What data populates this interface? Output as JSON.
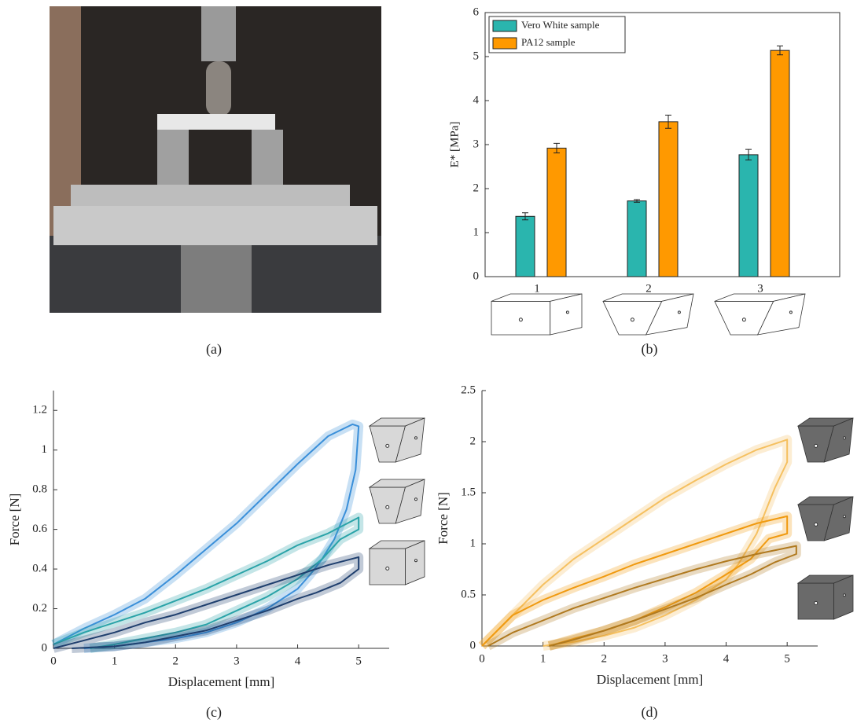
{
  "photo": {
    "caption": "(a)"
  },
  "chart_data": [
    {
      "type": "bar",
      "caption": "(b)",
      "ylabel": "E* [MPa]",
      "categories": [
        "1",
        "2",
        "3"
      ],
      "series": [
        {
          "name": "Vero White sample",
          "color": "#2ab5ae",
          "values": [
            1.37,
            1.72,
            2.77
          ],
          "error": [
            0.08,
            0.03,
            0.12
          ]
        },
        {
          "name": "PA12 sample",
          "color": "#ff9900",
          "values": [
            2.92,
            3.52,
            5.14
          ],
          "error": [
            0.11,
            0.15,
            0.1
          ]
        }
      ],
      "ylim": [
        0,
        6
      ],
      "yticks": [
        0,
        1,
        2,
        3,
        4,
        5,
        6
      ],
      "legend": "upper-left"
    },
    {
      "type": "line",
      "caption": "(c)",
      "xlabel": "Displacement [mm]",
      "ylabel": "Force [N]",
      "xlim": [
        0,
        5.5
      ],
      "xticks": [
        0,
        1,
        2,
        3,
        4,
        5
      ],
      "ylim": [
        0,
        1.3
      ],
      "yticks": [
        0,
        0.2,
        0.4,
        0.6,
        0.8,
        1,
        1.2
      ],
      "series": [
        {
          "color": "#3a8fd9",
          "x": [
            0,
            0.5,
            1,
            1.5,
            2,
            2.5,
            3,
            3.5,
            4,
            4.5,
            4.9,
            5.0,
            4.95,
            4.8,
            4.6,
            4.4,
            4.2,
            4,
            3.5,
            3,
            2.5,
            2,
            1.5,
            1,
            0.5
          ],
          "values": [
            0.02,
            0.1,
            0.17,
            0.25,
            0.37,
            0.5,
            0.63,
            0.78,
            0.93,
            1.07,
            1.13,
            1.12,
            0.9,
            0.7,
            0.55,
            0.45,
            0.37,
            0.3,
            0.2,
            0.13,
            0.08,
            0.05,
            0.03,
            0.01,
            0
          ]
        },
        {
          "color": "#2aa3a8",
          "x": [
            0,
            0.5,
            1,
            1.5,
            2,
            2.5,
            3,
            3.5,
            4,
            4.5,
            5,
            5,
            4.7,
            4.4,
            4,
            3.5,
            3,
            2.5,
            2,
            1.5,
            1,
            0.6
          ],
          "values": [
            0.02,
            0.08,
            0.13,
            0.18,
            0.24,
            0.3,
            0.37,
            0.44,
            0.52,
            0.58,
            0.66,
            0.6,
            0.55,
            0.45,
            0.35,
            0.26,
            0.19,
            0.12,
            0.08,
            0.05,
            0.02,
            0
          ]
        },
        {
          "color": "#1f3f6e",
          "x": [
            0,
            0.5,
            1,
            1.5,
            2,
            2.5,
            3,
            3.5,
            4,
            4.5,
            5,
            5,
            4.7,
            4.3,
            4,
            3.5,
            3,
            2.5,
            2,
            1.5,
            1,
            0.3
          ],
          "values": [
            0,
            0.04,
            0.08,
            0.13,
            0.17,
            0.22,
            0.27,
            0.32,
            0.37,
            0.42,
            0.46,
            0.4,
            0.33,
            0.28,
            0.25,
            0.19,
            0.14,
            0.09,
            0.06,
            0.03,
            0.01,
            0
          ]
        }
      ]
    },
    {
      "type": "line",
      "caption": "(d)",
      "xlabel": "Displacement [mm]",
      "ylabel": "Force [N]",
      "xlim": [
        0,
        5.5
      ],
      "xticks": [
        0,
        1,
        2,
        3,
        4,
        5
      ],
      "ylim": [
        0,
        2.5
      ],
      "yticks": [
        0,
        0.5,
        1,
        1.5,
        2,
        2.5
      ],
      "series": [
        {
          "color": "#f5c060",
          "x": [
            0,
            0.5,
            1,
            1.5,
            2,
            2.5,
            3,
            3.5,
            4,
            4.5,
            5,
            5,
            4.8,
            4.5,
            4.2,
            4,
            3.5,
            3,
            2.5,
            2,
            1.5,
            1
          ],
          "values": [
            0,
            0.3,
            0.6,
            0.85,
            1.05,
            1.25,
            1.45,
            1.62,
            1.78,
            1.92,
            2.02,
            1.8,
            1.55,
            1.1,
            0.8,
            0.65,
            0.45,
            0.3,
            0.18,
            0.1,
            0.04,
            0
          ]
        },
        {
          "color": "#f09a10",
          "x": [
            0,
            0.5,
            1,
            1.5,
            2,
            2.5,
            3,
            3.5,
            4,
            4.5,
            5,
            5,
            4.7,
            4.4,
            4,
            3.5,
            3,
            2.5,
            2,
            1.5,
            1.1
          ],
          "values": [
            0,
            0.3,
            0.45,
            0.57,
            0.68,
            0.8,
            0.9,
            1.0,
            1.1,
            1.2,
            1.27,
            1.1,
            1.05,
            0.85,
            0.7,
            0.52,
            0.38,
            0.25,
            0.15,
            0.07,
            0
          ]
        },
        {
          "color": "#b07a20",
          "x": [
            0.1,
            0.5,
            1,
            1.5,
            2,
            2.5,
            3,
            3.5,
            4,
            4.5,
            5.15,
            5.15,
            4.8,
            4.4,
            4,
            3.5,
            3,
            2.5,
            2,
            1.5,
            1.1
          ],
          "values": [
            0,
            0.13,
            0.25,
            0.37,
            0.47,
            0.57,
            0.66,
            0.75,
            0.83,
            0.9,
            0.98,
            0.9,
            0.82,
            0.7,
            0.6,
            0.47,
            0.36,
            0.25,
            0.15,
            0.06,
            0
          ]
        }
      ]
    }
  ]
}
